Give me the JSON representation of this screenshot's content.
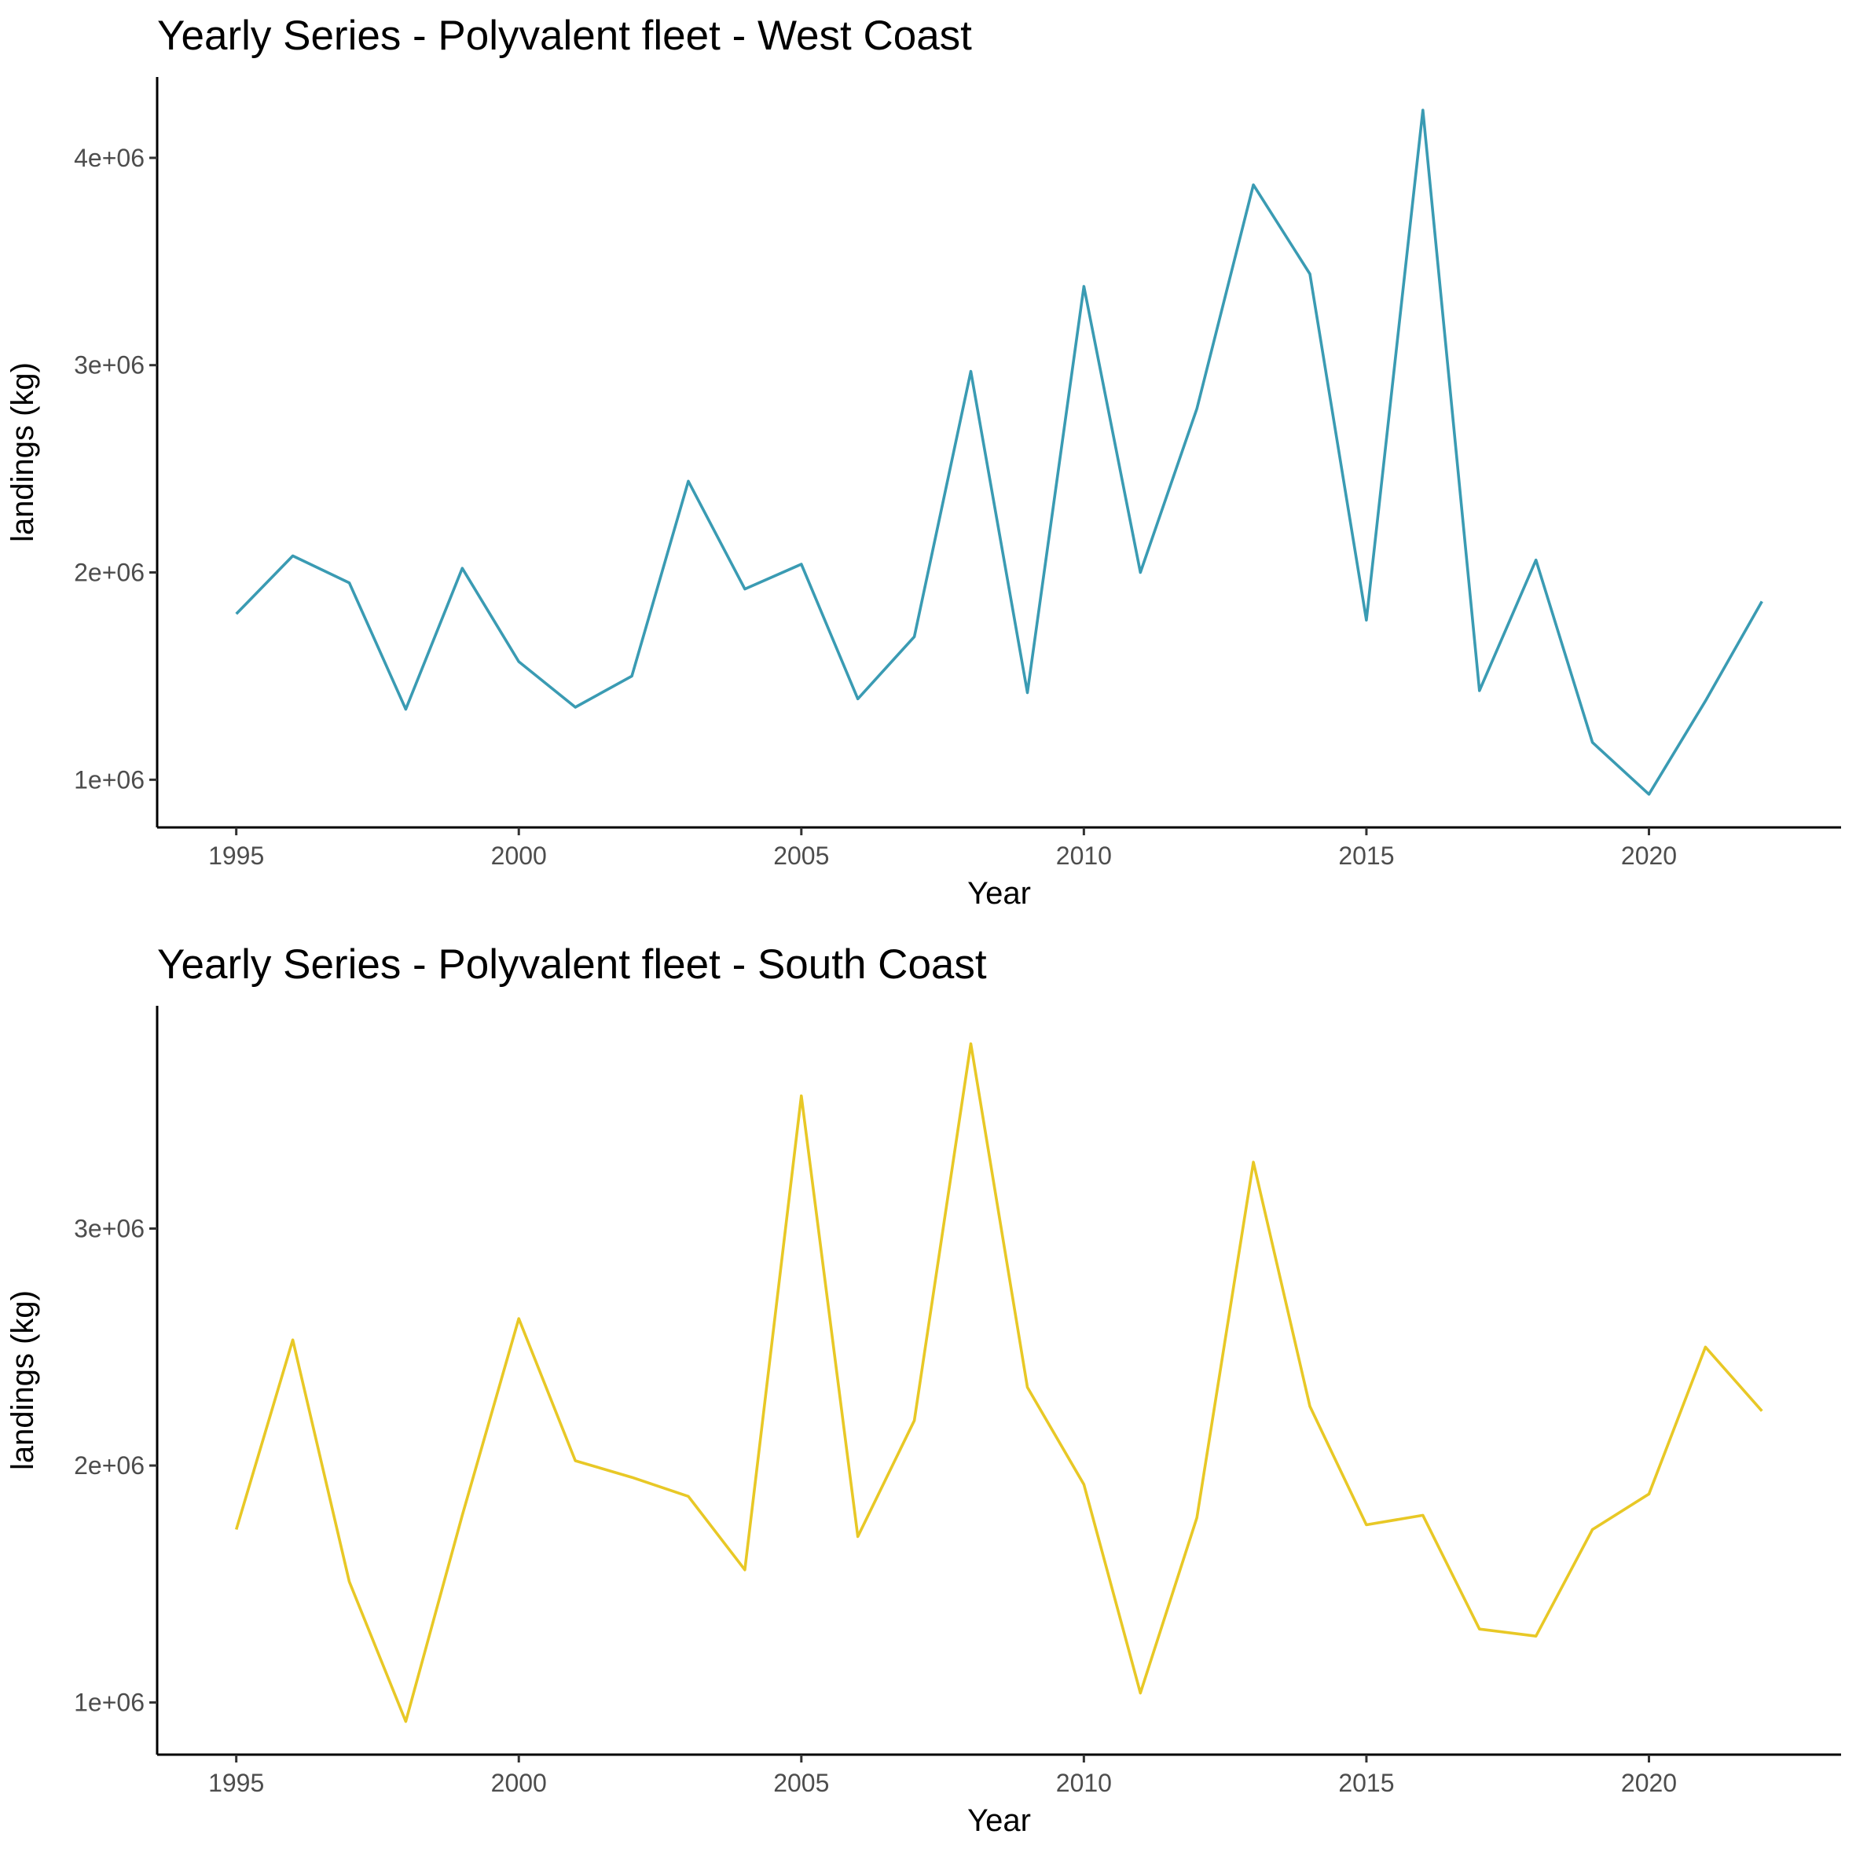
{
  "chart_data": [
    {
      "type": "line",
      "title": "Yearly Series - Polyvalent fleet - West Coast",
      "xlabel": "Year",
      "ylabel": "landings (kg)",
      "xlim": [
        1993.6,
        2023.4
      ],
      "ylim": [
        770000,
        4390000
      ],
      "xticks": [
        1995,
        2000,
        2005,
        2010,
        2015,
        2020
      ],
      "xtick_labels": [
        "1995",
        "2000",
        "2005",
        "2010",
        "2015",
        "2020"
      ],
      "yticks": [
        1000000,
        2000000,
        3000000,
        4000000
      ],
      "ytick_labels": [
        "1e+06",
        "2e+06",
        "3e+06",
        "4e+06"
      ],
      "grid": false,
      "legend": "none",
      "color": "#3a9bb3",
      "x": [
        1995,
        1996,
        1997,
        1998,
        1999,
        2000,
        2001,
        2002,
        2003,
        2004,
        2005,
        2006,
        2007,
        2008,
        2009,
        2010,
        2011,
        2012,
        2013,
        2014,
        2015,
        2016,
        2017,
        2018,
        2019,
        2020,
        2021,
        2022
      ],
      "y": [
        1800000,
        2080000,
        1950000,
        1340000,
        2020000,
        1570000,
        1350000,
        1500000,
        2440000,
        1920000,
        2040000,
        1390000,
        1690000,
        2970000,
        1420000,
        3380000,
        2000000,
        2790000,
        3870000,
        3440000,
        1770000,
        4230000,
        1430000,
        2060000,
        1180000,
        930000,
        1380000,
        1860000
      ]
    },
    {
      "type": "line",
      "title": "Yearly Series - Polyvalent fleet - South Coast",
      "xlabel": "Year",
      "ylabel": "landings (kg)",
      "xlim": [
        1993.6,
        2023.4
      ],
      "ylim": [
        780000,
        3940000
      ],
      "xticks": [
        1995,
        2000,
        2005,
        2010,
        2015,
        2020
      ],
      "xtick_labels": [
        "1995",
        "2000",
        "2005",
        "2010",
        "2015",
        "2020"
      ],
      "yticks": [
        1000000,
        2000000,
        3000000
      ],
      "ytick_labels": [
        "1e+06",
        "2e+06",
        "3e+06"
      ],
      "grid": false,
      "legend": "none",
      "color": "#e8c826",
      "x": [
        1995,
        1996,
        1997,
        1998,
        1999,
        2000,
        2001,
        2002,
        2003,
        2004,
        2005,
        2006,
        2007,
        2008,
        2009,
        2010,
        2011,
        2012,
        2013,
        2014,
        2015,
        2016,
        2017,
        2018,
        2019,
        2020,
        2021,
        2022
      ],
      "y": [
        1730000,
        2530000,
        1510000,
        920000,
        1790000,
        2620000,
        2020000,
        1950000,
        1870000,
        1560000,
        3560000,
        1700000,
        2190000,
        3780000,
        2330000,
        1920000,
        1040000,
        1780000,
        3280000,
        2250000,
        1750000,
        1790000,
        1310000,
        1280000,
        1730000,
        1880000,
        2500000,
        2230000
      ]
    }
  ]
}
